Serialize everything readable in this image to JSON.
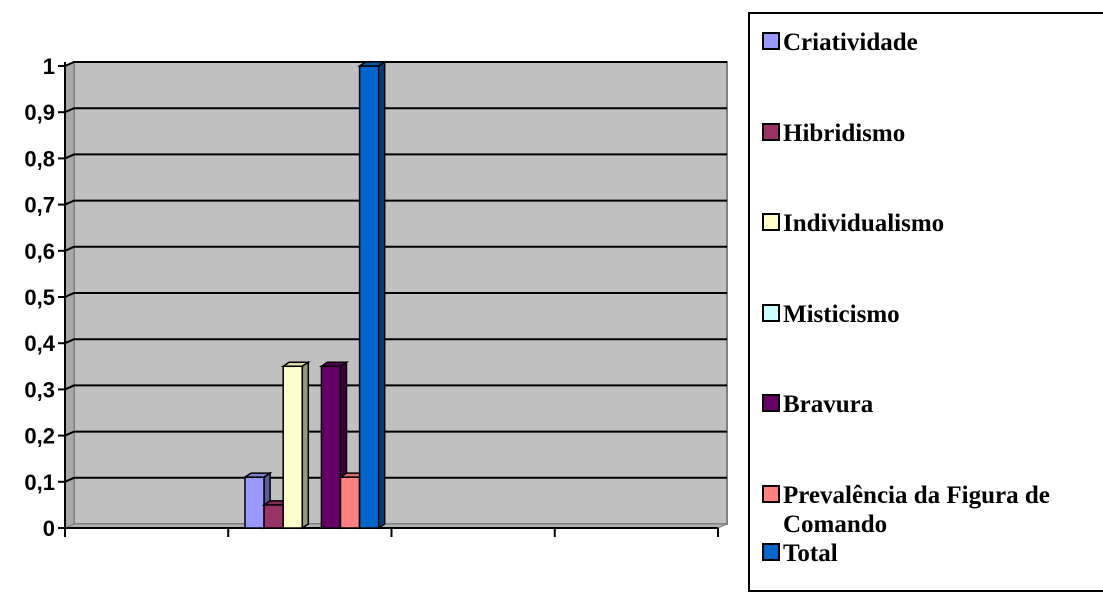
{
  "chart_data": {
    "type": "bar",
    "style": "3d-clustered-column",
    "categories": [
      ""
    ],
    "series": [
      {
        "name": "Criatividade",
        "values": [
          0.11
        ],
        "color": "#9999ff"
      },
      {
        "name": "Hibridismo",
        "values": [
          0.05
        ],
        "color": "#993366"
      },
      {
        "name": "Individualismo",
        "values": [
          0.35
        ],
        "color": "#ffffcc"
      },
      {
        "name": "Misticismo",
        "values": [
          0.0
        ],
        "color": "#ccffff"
      },
      {
        "name": "Bravura",
        "values": [
          0.35
        ],
        "color": "#660066"
      },
      {
        "name": "Prevalência da Figura de Comando",
        "values": [
          0.11
        ],
        "color": "#ff8080"
      },
      {
        "name": "Total",
        "values": [
          1.0
        ],
        "color": "#0066cc"
      }
    ],
    "yticks": [
      "0",
      "0,1",
      "0,2",
      "0,3",
      "0,4",
      "0,5",
      "0,6",
      "0,7",
      "0,8",
      "0,9",
      "1"
    ],
    "ylim": [
      0,
      1
    ],
    "grid": true,
    "plot_background": "#c0c0c0",
    "legend_position": "right",
    "title": "",
    "xlabel": "",
    "ylabel": ""
  }
}
